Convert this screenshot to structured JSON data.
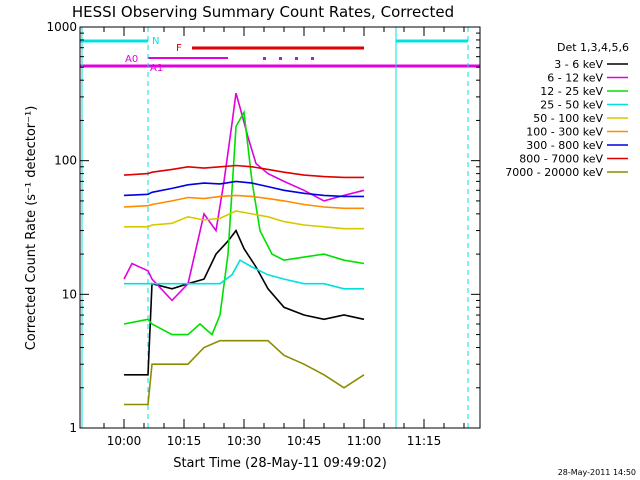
{
  "chart_data": {
    "type": "line",
    "title": "HESSI Observing Summary Count Rates, Corrected",
    "xlabel": "Start Time (28-May-11 09:49:02)",
    "ylabel": "Corrected Count Rate (s⁻¹ detector⁻¹)",
    "y_scale": "log",
    "xlim": [
      "09:49",
      "11:29"
    ],
    "ylim": [
      1,
      1000
    ],
    "x_ticks": [
      "10:00",
      "10:15",
      "10:30",
      "10:45",
      "11:00",
      "11:15"
    ],
    "y_ticks": [
      1,
      10,
      100,
      1000
    ],
    "y_tick_labels": [
      "1",
      "10",
      "100",
      "1000"
    ],
    "grid": false,
    "legend_title": "Det 1,3,4,5,6",
    "legend_placement": "right",
    "timestamp": "28-May-2011 14:50",
    "series": [
      {
        "name": "3 - 6 keV",
        "color": "#000000",
        "x": [
          "10:00",
          "10:06",
          "10:07",
          "10:12",
          "10:16",
          "10:20",
          "10:23",
          "10:26",
          "10:28",
          "10:30",
          "10:33",
          "10:36",
          "10:40",
          "10:45",
          "10:50",
          "10:55",
          "11:00"
        ],
        "values": [
          2.5,
          2.5,
          12,
          11,
          12,
          13,
          20,
          25,
          30,
          22,
          16,
          11,
          8,
          7,
          6.5,
          7,
          6.5
        ]
      },
      {
        "name": "6 - 12 keV",
        "color": "#e000e0",
        "x": [
          "10:00",
          "10:02",
          "10:06",
          "10:07",
          "10:12",
          "10:16",
          "10:20",
          "10:23",
          "10:25",
          "10:27",
          "10:28",
          "10:29",
          "10:31",
          "10:33",
          "10:36",
          "10:40",
          "10:45",
          "10:50",
          "10:55",
          "11:00"
        ],
        "values": [
          13,
          17,
          15,
          13,
          9,
          12,
          40,
          30,
          70,
          190,
          320,
          250,
          150,
          95,
          80,
          70,
          60,
          50,
          55,
          60
        ]
      },
      {
        "name": "12 - 25 keV",
        "color": "#00e000",
        "x": [
          "10:00",
          "10:06",
          "10:07",
          "10:12",
          "10:16",
          "10:19",
          "10:22",
          "10:24",
          "10:26",
          "10:28",
          "10:30",
          "10:32",
          "10:34",
          "10:37",
          "10:40",
          "10:45",
          "10:50",
          "10:55",
          "11:00"
        ],
        "values": [
          6,
          6.5,
          6,
          5,
          5,
          6,
          5,
          7,
          20,
          180,
          230,
          70,
          30,
          20,
          18,
          19,
          20,
          18,
          17
        ]
      },
      {
        "name": "25 - 50 keV",
        "color": "#00e0e0",
        "x": [
          "10:00",
          "10:06",
          "10:07",
          "10:12",
          "10:16",
          "10:20",
          "10:24",
          "10:27",
          "10:29",
          "10:32",
          "10:36",
          "10:40",
          "10:45",
          "10:50",
          "10:55",
          "11:00"
        ],
        "values": [
          12,
          12,
          12,
          12,
          12,
          12,
          12,
          14,
          18,
          16,
          14,
          13,
          12,
          12,
          11,
          11
        ]
      },
      {
        "name": "50 - 100 keV",
        "color": "#d8c800",
        "x": [
          "10:00",
          "10:06",
          "10:07",
          "10:12",
          "10:16",
          "10:20",
          "10:24",
          "10:28",
          "10:32",
          "10:36",
          "10:40",
          "10:45",
          "10:50",
          "10:55",
          "11:00"
        ],
        "values": [
          32,
          32,
          33,
          34,
          38,
          36,
          37,
          42,
          40,
          38,
          35,
          33,
          32,
          31,
          31
        ]
      },
      {
        "name": "100 - 300 keV",
        "color": "#ff8c00",
        "x": [
          "10:00",
          "10:06",
          "10:07",
          "10:12",
          "10:16",
          "10:20",
          "10:24",
          "10:28",
          "10:32",
          "10:36",
          "10:40",
          "10:45",
          "10:50",
          "10:55",
          "11:00"
        ],
        "values": [
          45,
          46,
          47,
          50,
          53,
          52,
          54,
          55,
          54,
          52,
          50,
          47,
          45,
          44,
          44
        ]
      },
      {
        "name": "300 - 800 keV",
        "color": "#0000e0",
        "x": [
          "10:00",
          "10:06",
          "10:07",
          "10:12",
          "10:16",
          "10:20",
          "10:24",
          "10:28",
          "10:32",
          "10:36",
          "10:40",
          "10:45",
          "10:50",
          "10:55",
          "11:00"
        ],
        "values": [
          55,
          56,
          58,
          62,
          66,
          68,
          67,
          70,
          68,
          64,
          60,
          57,
          55,
          54,
          54
        ]
      },
      {
        "name": "800 - 7000 keV",
        "color": "#e00000",
        "x": [
          "10:00",
          "10:06",
          "10:07",
          "10:12",
          "10:16",
          "10:20",
          "10:24",
          "10:28",
          "10:32",
          "10:36",
          "10:40",
          "10:45",
          "10:50",
          "10:55",
          "11:00"
        ],
        "values": [
          78,
          80,
          82,
          86,
          90,
          88,
          90,
          92,
          90,
          86,
          82,
          78,
          76,
          75,
          75
        ]
      },
      {
        "name": "7000 - 20000 keV",
        "color": "#8c8c00",
        "x": [
          "10:00",
          "10:06",
          "10:07",
          "10:12",
          "10:16",
          "10:20",
          "10:24",
          "10:28",
          "10:32",
          "10:36",
          "10:40",
          "10:45",
          "10:50",
          "10:55",
          "11:00"
        ],
        "values": [
          1.5,
          1.5,
          3,
          3,
          3,
          4,
          4.5,
          4.5,
          4.5,
          4.5,
          3.5,
          3,
          2.5,
          2,
          2.5
        ]
      }
    ],
    "annotations": [
      {
        "text": "N",
        "color": "#00e0e0"
      },
      {
        "text": "F",
        "color": "#e00000"
      },
      {
        "text": "A0",
        "color": "#e000e0"
      },
      {
        "text": "A1",
        "color": "#e000e0"
      }
    ]
  }
}
